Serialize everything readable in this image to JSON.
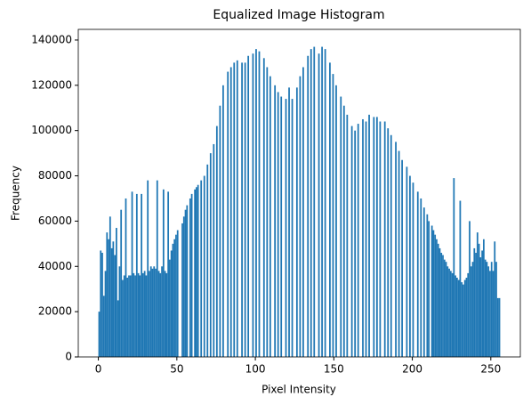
{
  "chart_data": {
    "type": "histogram",
    "title": "Equalized Image Histogram",
    "x_label": "Pixel Intensity",
    "y_label": "Frequency",
    "color": "#1f77b4",
    "bins": [
      0,
      1,
      2,
      3,
      4,
      5,
      6,
      7,
      8,
      9,
      10,
      11,
      12,
      13,
      14,
      15,
      16,
      17,
      18,
      19,
      20,
      21,
      22,
      23,
      24,
      25,
      26,
      27,
      28,
      29,
      30,
      31,
      32,
      33,
      34,
      35,
      36,
      37,
      38,
      39,
      40,
      41,
      42,
      43,
      44,
      45,
      46,
      47,
      48,
      49,
      50,
      51,
      52,
      53,
      54,
      55,
      56,
      57,
      58,
      59,
      60,
      61,
      62,
      63,
      64,
      65,
      66,
      67,
      68,
      69,
      70,
      71,
      72,
      73,
      74,
      75,
      76,
      77,
      78,
      79,
      80,
      81,
      82,
      83,
      84,
      85,
      86,
      87,
      88,
      89,
      90,
      91,
      92,
      93,
      94,
      95,
      96,
      97,
      98,
      99,
      100,
      101,
      102,
      103,
      104,
      105,
      106,
      107,
      108,
      109,
      110,
      111,
      112,
      113,
      114,
      115,
      116,
      117,
      118,
      119,
      120,
      121,
      122,
      123,
      124,
      125,
      126,
      127,
      128,
      129,
      130,
      131,
      132,
      133,
      134,
      135,
      136,
      137,
      138,
      139,
      140,
      141,
      142,
      143,
      144,
      145,
      146,
      147,
      148,
      149,
      150,
      151,
      152,
      153,
      154,
      155,
      156,
      157,
      158,
      159,
      160,
      161,
      162,
      163,
      164,
      165,
      166,
      167,
      168,
      169,
      170,
      171,
      172,
      173,
      174,
      175,
      176,
      177,
      178,
      179,
      180,
      181,
      182,
      183,
      184,
      185,
      186,
      187,
      188,
      189,
      190,
      191,
      192,
      193,
      194,
      195,
      196,
      197,
      198,
      199,
      200,
      201,
      202,
      203,
      204,
      205,
      206,
      207,
      208,
      209,
      210,
      211,
      212,
      213,
      214,
      215,
      216,
      217,
      218,
      219,
      220,
      221,
      222,
      223,
      224,
      225,
      226,
      227,
      228,
      229,
      230,
      231,
      232,
      233,
      234,
      235,
      236,
      237,
      238,
      239,
      240,
      241,
      242,
      243,
      244,
      245,
      246,
      247,
      248,
      249,
      250,
      251,
      252,
      253,
      254,
      255,
      256
    ],
    "values": [
      20000,
      47000,
      46000,
      27000,
      38000,
      55000,
      52000,
      62000,
      48000,
      51000,
      45000,
      57000,
      25000,
      40000,
      65000,
      34000,
      36000,
      70000,
      35000,
      36000,
      36000,
      73000,
      37000,
      36000,
      72000,
      37000,
      36000,
      72000,
      37000,
      38000,
      36000,
      78000,
      38000,
      40000,
      39000,
      40000,
      39000,
      78000,
      38000,
      37000,
      40000,
      74000,
      38000,
      37000,
      73000,
      43000,
      47000,
      50000,
      52000,
      54000,
      56000,
      0,
      0,
      59000,
      62000,
      65000,
      67000,
      0,
      70000,
      72000,
      0,
      74000,
      75000,
      76000,
      0,
      78000,
      0,
      80000,
      0,
      85000,
      0,
      90000,
      0,
      94000,
      0,
      102000,
      0,
      111000,
      0,
      120000,
      0,
      0,
      126000,
      0,
      128000,
      0,
      130000,
      0,
      131000,
      0,
      0,
      130000,
      0,
      130000,
      0,
      133000,
      0,
      0,
      134000,
      0,
      136000,
      0,
      135000,
      0,
      0,
      132000,
      0,
      128000,
      0,
      124000,
      0,
      0,
      120000,
      0,
      117000,
      0,
      115000,
      0,
      0,
      114000,
      0,
      119000,
      0,
      114000,
      0,
      0,
      119000,
      0,
      124000,
      0,
      128000,
      0,
      0,
      133000,
      0,
      136000,
      0,
      137000,
      0,
      0,
      134000,
      0,
      137000,
      0,
      136000,
      0,
      0,
      130000,
      0,
      125000,
      0,
      120000,
      0,
      0,
      115000,
      0,
      111000,
      0,
      107000,
      0,
      0,
      102000,
      0,
      100000,
      0,
      103000,
      0,
      0,
      105000,
      0,
      104000,
      0,
      107000,
      0,
      0,
      106000,
      0,
      106000,
      0,
      104000,
      0,
      0,
      104000,
      0,
      101000,
      0,
      98000,
      0,
      0,
      95000,
      0,
      91000,
      0,
      87000,
      0,
      0,
      84000,
      0,
      80000,
      0,
      77000,
      0,
      0,
      73000,
      0,
      70000,
      0,
      66000,
      0,
      63000,
      60000,
      0,
      58000,
      56000,
      54000,
      52000,
      50000,
      48000,
      46000,
      45000,
      43000,
      42000,
      40000,
      39000,
      38000,
      37000,
      79000,
      36000,
      35000,
      34000,
      69000,
      33000,
      32000,
      34000,
      35000,
      37000,
      60000,
      40000,
      42000,
      48000,
      46000,
      55000,
      50000,
      44000,
      47000,
      52000,
      43000,
      42000,
      40000,
      38000,
      42000,
      38000,
      51000,
      42000,
      26000,
      26000
    ],
    "xlim": [
      -12.8,
      268.8
    ],
    "ylim": [
      0,
      144700
    ],
    "xticks": [
      0,
      50,
      100,
      150,
      200,
      250
    ],
    "yticks": [
      0,
      20000,
      40000,
      60000,
      80000,
      100000,
      120000,
      140000
    ]
  }
}
